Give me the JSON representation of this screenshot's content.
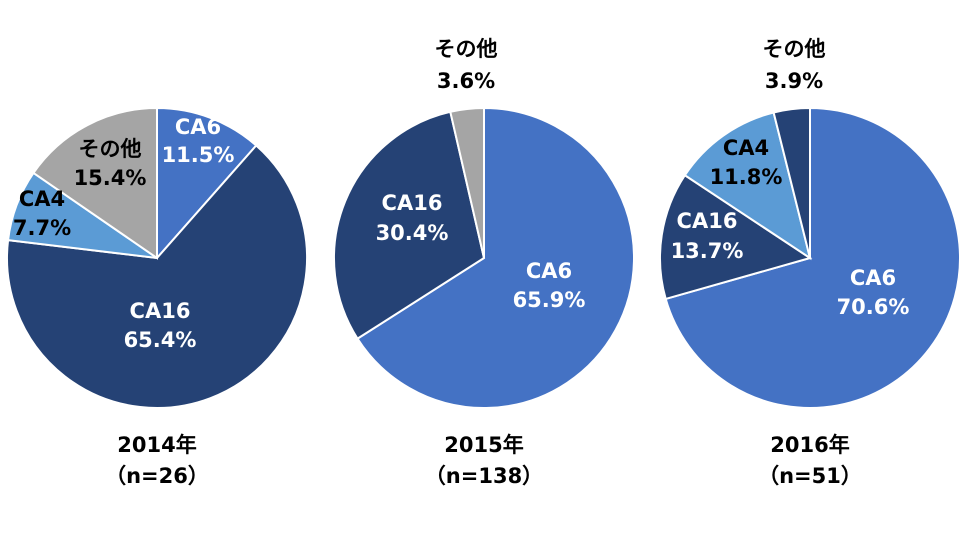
{
  "chart_data": [
    {
      "type": "pie",
      "caption": "2014年",
      "n_label": "（n=26）",
      "slices": [
        {
          "name": "CA6",
          "value": 11.5,
          "label": "11.5%",
          "color": "#4472C4",
          "text_color": "#FFFFFF"
        },
        {
          "name": "CA16",
          "value": 65.4,
          "label": "65.4%",
          "color": "#254275",
          "text_color": "#FFFFFF"
        },
        {
          "name": "CA4",
          "value": 7.7,
          "label": "7.7%",
          "color": "#5B9BD5",
          "text_color": "#000000"
        },
        {
          "name": "その他",
          "value": 15.4,
          "label": "15.4%",
          "color": "#A5A5A5",
          "text_color": "#000000"
        }
      ]
    },
    {
      "type": "pie",
      "caption": "2015年",
      "n_label": "（n=138）",
      "slices": [
        {
          "name": "CA6",
          "value": 65.9,
          "label": "65.9%",
          "color": "#4472C4",
          "text_color": "#FFFFFF"
        },
        {
          "name": "CA16",
          "value": 30.4,
          "label": "30.4%",
          "color": "#254275",
          "text_color": "#FFFFFF"
        },
        {
          "name": "その他",
          "value": 3.6,
          "label": "3.6%",
          "color": "#A5A5A5",
          "text_color": "#000000"
        }
      ]
    },
    {
      "type": "pie",
      "caption": "2016年",
      "n_label": "（n=51）",
      "slices": [
        {
          "name": "CA6",
          "value": 70.6,
          "label": "70.6%",
          "color": "#4472C4",
          "text_color": "#FFFFFF"
        },
        {
          "name": "CA16",
          "value": 13.7,
          "label": "13.7%",
          "color": "#254275",
          "text_color": "#FFFFFF"
        },
        {
          "name": "CA4",
          "value": 11.8,
          "label": "11.8%",
          "color": "#5B9BD5",
          "text_color": "#000000"
        },
        {
          "name": "その他",
          "value": 3.9,
          "label": "3.9%",
          "color": "#254275",
          "text_color": "#000000"
        }
      ]
    }
  ]
}
